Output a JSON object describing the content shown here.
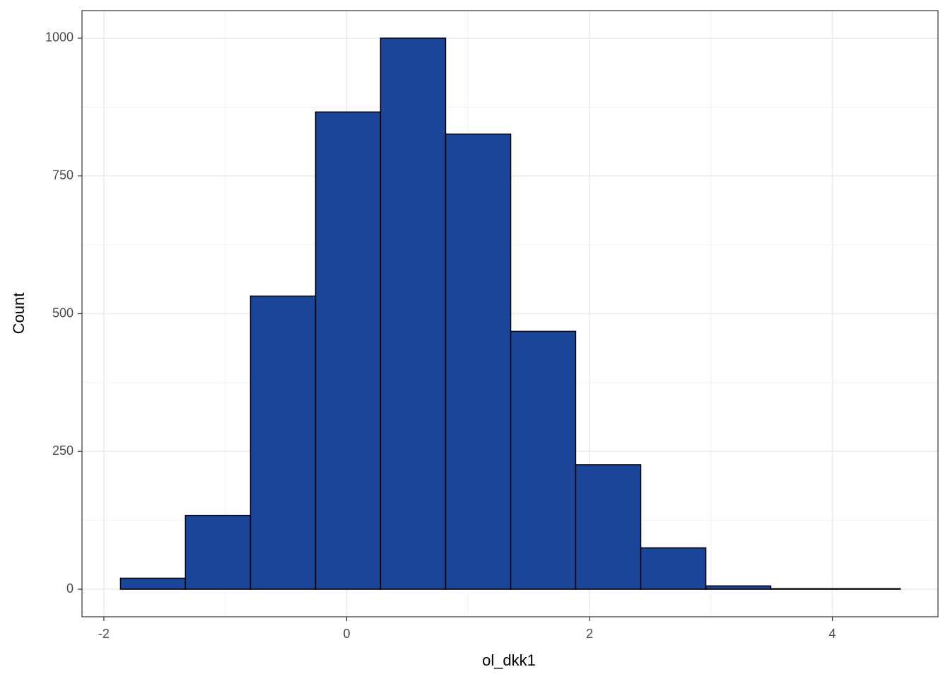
{
  "chart_data": {
    "type": "histogram",
    "x_label": "ol_dkk1",
    "y_label": "Count",
    "bins": [
      -1.863,
      -1.328,
      -0.792,
      -0.256,
      0.279,
      0.815,
      1.351,
      1.886,
      2.422,
      2.958,
      3.493,
      4.029,
      4.559
    ],
    "values": [
      20,
      134,
      532,
      866,
      1000,
      826,
      468,
      226,
      75,
      6,
      1,
      1
    ],
    "color": "#1a4599",
    "edge_color": "#000000",
    "xlim": [
      -2.18,
      4.87
    ],
    "xticks": [
      -2,
      0,
      2,
      4
    ],
    "minor_xticks": [
      -1,
      1,
      3
    ],
    "ylim": [
      -50,
      1050
    ],
    "yticks": [
      0,
      250,
      500,
      750,
      1000
    ],
    "minor_yticks": [
      125,
      375,
      625,
      875
    ],
    "grid": true
  }
}
